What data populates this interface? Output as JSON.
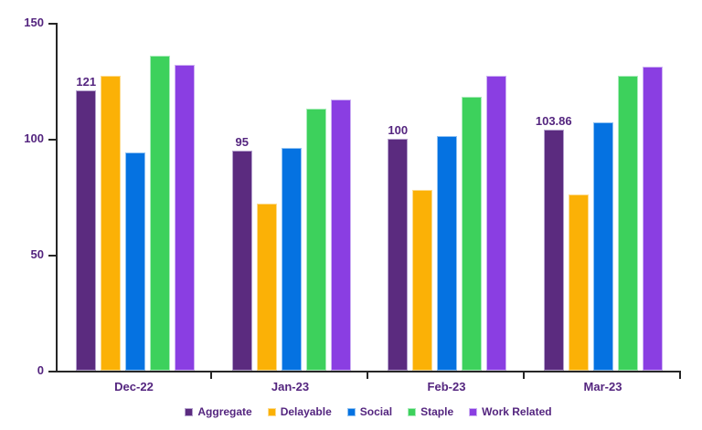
{
  "style": {
    "background": "#FFFFFF",
    "text_color": "#54257F",
    "axis_color": "#262626"
  },
  "chart_data": {
    "type": "bar",
    "title": "",
    "xlabel": "",
    "ylabel": "",
    "categories": [
      "Dec-22",
      "Jan-23",
      "Feb-23",
      "Mar-23"
    ],
    "series": [
      {
        "name": "Aggregate",
        "color": "#5B2B7F",
        "border_color": "#B5A2CE",
        "values": [
          121,
          95,
          100,
          103.86
        ],
        "labels": [
          "121",
          "95",
          "100",
          "103.86"
        ]
      },
      {
        "name": "Delayable",
        "color": "#FBB106",
        "border_color": "#FDDB8E",
        "values": [
          127,
          72,
          78,
          76
        ]
      },
      {
        "name": "Social",
        "color": "#0572E1",
        "border_color": "#90C2F2",
        "values": [
          94,
          96,
          101,
          107
        ]
      },
      {
        "name": "Staple",
        "color": "#3DD15C",
        "border_color": "#A9ECBA",
        "values": [
          136,
          113,
          118,
          127
        ]
      },
      {
        "name": "Work Related",
        "color": "#8A3EE2",
        "border_color": "#CDB2F3",
        "values": [
          132,
          117,
          127,
          131
        ]
      }
    ],
    "ylim": [
      0,
      150
    ],
    "yticks": [
      0,
      50,
      100,
      150
    ],
    "grid": false,
    "legend_position": "bottom",
    "data_labels_series": "Aggregate"
  }
}
